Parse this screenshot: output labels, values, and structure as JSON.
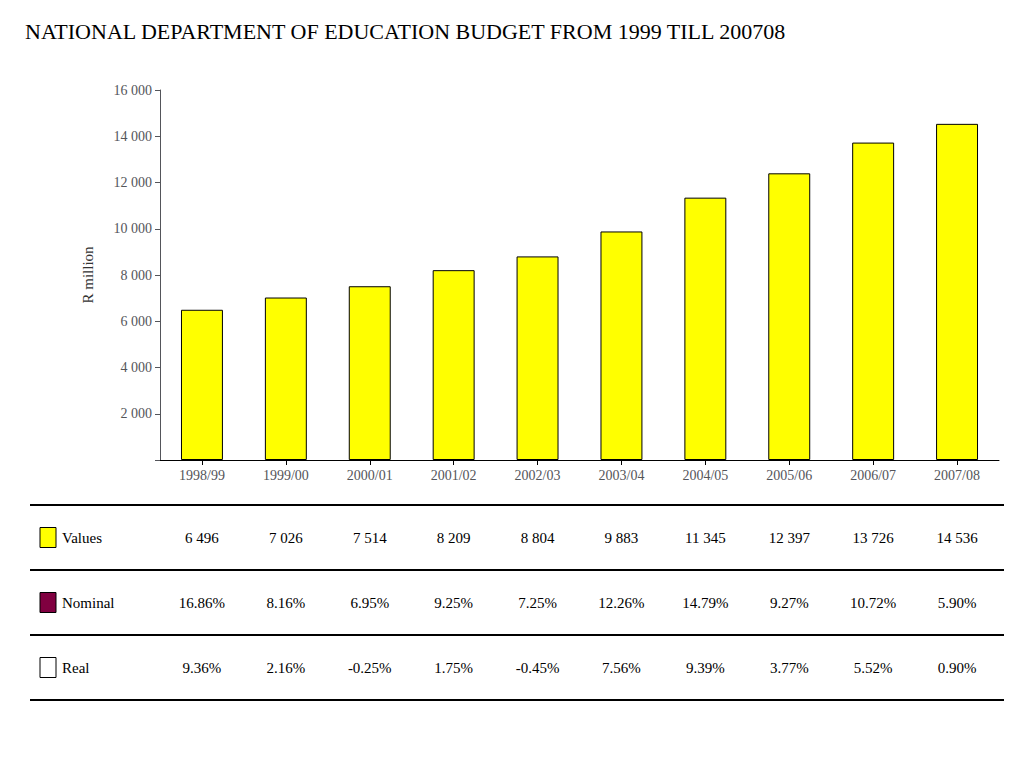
{
  "chart_data": {
    "type": "bar",
    "title": "NATIONAL DEPARTMENT OF EDUCATION BUDGET FROM 1999 TILL 200708",
    "ylabel": "R million",
    "categories": [
      "1998/99",
      "1999/00",
      "2000/01",
      "2001/02",
      "2002/03",
      "2003/04",
      "2004/05",
      "2005/06",
      "2006/07",
      "2007/08"
    ],
    "values": [
      6496,
      7026,
      7514,
      8209,
      8804,
      9883,
      11345,
      12397,
      13726,
      14536
    ],
    "color": "#FFFF00",
    "ylim": [
      0,
      16000
    ],
    "yticks": [
      {
        "value": 0,
        "label": ""
      },
      {
        "value": 2000,
        "label": "2 000"
      },
      {
        "value": 4000,
        "label": "4 000"
      },
      {
        "value": 6000,
        "label": "6 000"
      },
      {
        "value": 8000,
        "label": "8 000"
      },
      {
        "value": 10000,
        "label": "10 000"
      },
      {
        "value": 12000,
        "label": "12 000"
      },
      {
        "value": 14000,
        "label": "14 000"
      },
      {
        "value": 16000,
        "label": "16 000"
      }
    ],
    "grid": false,
    "table": [
      {
        "name": "Values",
        "color": "#FFFF00",
        "values": [
          6496,
          7026,
          7514,
          8209,
          8804,
          9883,
          11345,
          12397,
          13726,
          14536
        ],
        "value_labels": [
          "6 496",
          "7 026",
          "7 514",
          "8 209",
          "8 804",
          "9 883",
          "11 345",
          "12 397",
          "13 726",
          "14 536"
        ]
      },
      {
        "name": "Nominal",
        "color": "#800040",
        "values": [
          16.86,
          8.16,
          6.95,
          9.25,
          7.25,
          12.26,
          14.79,
          9.27,
          10.72,
          5.9
        ],
        "value_labels": [
          "16.86%",
          "8.16%",
          "6.95%",
          "9.25%",
          "7.25%",
          "12.26%",
          "14.79%",
          "9.27%",
          "10.72%",
          "5.90%"
        ]
      },
      {
        "name": "Real",
        "color": "#FFFFFF",
        "values": [
          9.36,
          2.16,
          -0.25,
          1.75,
          -0.45,
          7.56,
          9.39,
          3.77,
          5.52,
          0.9
        ],
        "value_labels": [
          "9.36%",
          "2.16%",
          "-0.25%",
          "1.75%",
          "-0.45%",
          "7.56%",
          "9.39%",
          "3.77%",
          "5.52%",
          "0.90%"
        ]
      }
    ]
  }
}
